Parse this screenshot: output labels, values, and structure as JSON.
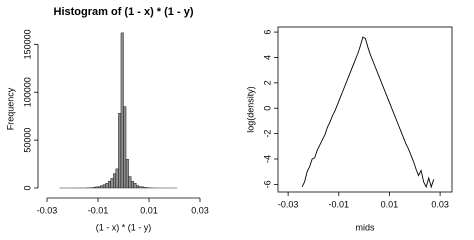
{
  "chart_data": [
    {
      "type": "histogram",
      "title": "Histogram of (1 - x) * (1 - y)",
      "x_label": "(1 - x) * (1 - y)",
      "y_label": "Frequency",
      "bins": [
        -0.03,
        -0.029,
        -0.028,
        -0.027,
        -0.026,
        -0.025,
        -0.024,
        -0.023,
        -0.022,
        -0.021,
        -0.02,
        -0.019,
        -0.018,
        -0.017,
        -0.016,
        -0.015,
        -0.014,
        -0.013,
        -0.012,
        -0.011,
        -0.01,
        -0.009,
        -0.008,
        -0.007,
        -0.006,
        -0.005,
        -0.004,
        -0.003,
        -0.002,
        -0.001,
        0,
        0.001,
        0.002,
        0.003,
        0.004,
        0.005,
        0.006,
        0.007,
        0.008,
        0.009,
        0.01,
        0.011,
        0.012,
        0.013,
        0.014,
        0.015,
        0.016,
        0.017,
        0.018,
        0.019,
        0.02,
        0.021,
        0.022,
        0.023,
        0.024,
        0.025,
        0.026,
        0.027,
        0.028,
        0.029,
        0.03
      ],
      "values": [
        0,
        0,
        0,
        0,
        0,
        2,
        2,
        5,
        5,
        5,
        10,
        10,
        20,
        20,
        40,
        80,
        150,
        300,
        600,
        1200,
        1500,
        2500,
        3500,
        5000,
        7000,
        10000,
        15000,
        20000,
        78000,
        162000,
        85000,
        30000,
        12000,
        7000,
        5000,
        2500,
        1500,
        1200,
        600,
        300,
        150,
        80,
        40,
        20,
        10,
        10,
        5,
        5,
        2,
        2,
        2,
        0,
        0,
        0,
        0,
        0,
        0,
        0,
        0,
        0
      ],
      "color": "#8c8c8c",
      "xlim": [
        -0.03,
        0.03
      ],
      "xticks": [
        -0.03,
        -0.01,
        0.01,
        0.03
      ],
      "ylim": [
        0,
        165000
      ],
      "yticks": [
        0,
        50000,
        100000,
        150000
      ]
    },
    {
      "type": "line",
      "x_label": "mids",
      "y_label": "log(density)",
      "x": [
        -0.0245,
        -0.0235,
        -0.0225,
        -0.0215,
        -0.0205,
        -0.0195,
        -0.0185,
        -0.0175,
        -0.0165,
        -0.0155,
        -0.0145,
        -0.0135,
        -0.0125,
        -0.0115,
        -0.0105,
        -0.0095,
        -0.0085,
        -0.0075,
        -0.0065,
        -0.0055,
        -0.0045,
        -0.0035,
        -0.0025,
        -0.0015,
        -0.0005,
        0.0005,
        0.0015,
        0.0025,
        0.0035,
        0.0045,
        0.0055,
        0.0065,
        0.0075,
        0.0085,
        0.0095,
        0.0105,
        0.0115,
        0.0125,
        0.0135,
        0.0145,
        0.0155,
        0.0165,
        0.0175,
        0.0185,
        0.0195,
        0.0205,
        0.0215,
        0.0225,
        0.0235,
        0.0245,
        0.0255,
        0.0265,
        0.0275
      ],
      "values": [
        -6.2,
        -5.8,
        -5.0,
        -4.6,
        -4.0,
        -3.9,
        -3.3,
        -2.9,
        -2.5,
        -2.1,
        -1.5,
        -1.1,
        -0.6,
        -0.2,
        0.3,
        0.8,
        1.3,
        1.8,
        2.3,
        2.8,
        3.3,
        3.8,
        4.3,
        4.9,
        5.6,
        5.5,
        4.8,
        4.2,
        3.7,
        3.2,
        2.7,
        2.2,
        1.7,
        1.2,
        0.7,
        0.2,
        -0.3,
        -0.8,
        -1.3,
        -1.8,
        -2.3,
        -2.8,
        -3.2,
        -3.7,
        -4.2,
        -4.8,
        -5.3,
        -4.9,
        -5.8,
        -6.2,
        -5.5,
        -6.2,
        -5.6
      ],
      "color": "#000000",
      "xlim": [
        -0.034,
        0.0347
      ],
      "xticks": [
        -0.03,
        -0.01,
        0.01,
        0.03
      ],
      "ylim": [
        -6.6,
        6.4
      ],
      "yticks": [
        -6,
        -4,
        -2,
        0,
        2,
        4,
        6
      ]
    }
  ]
}
